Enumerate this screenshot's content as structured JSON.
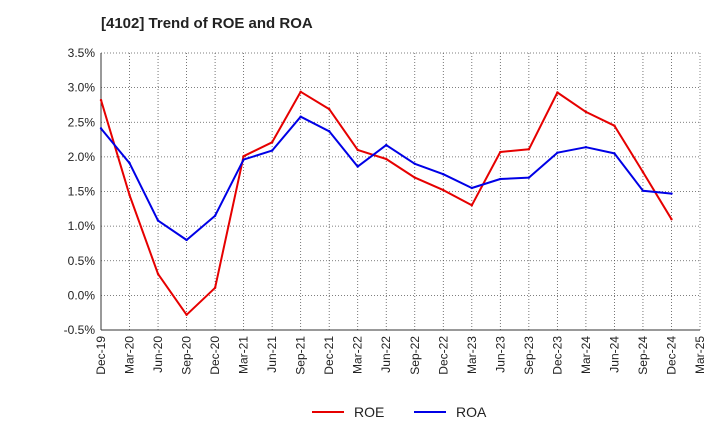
{
  "chart_data": {
    "type": "line",
    "title": "[4102]  Trend of ROE and ROA",
    "xlabel": "",
    "ylabel": "",
    "categories": [
      "Dec-19",
      "Mar-20",
      "Jun-20",
      "Sep-20",
      "Dec-20",
      "Mar-21",
      "Jun-21",
      "Sep-21",
      "Dec-21",
      "Mar-22",
      "Jun-22",
      "Sep-22",
      "Dec-22",
      "Mar-23",
      "Jun-23",
      "Sep-23",
      "Dec-23",
      "Mar-24",
      "Jun-24",
      "Sep-24",
      "Dec-24",
      "Mar-25"
    ],
    "ylim": [
      -0.5,
      3.5
    ],
    "yticks": [
      "-0.5%",
      "0.0%",
      "0.5%",
      "1.0%",
      "1.5%",
      "2.0%",
      "2.5%",
      "3.0%",
      "3.5%"
    ],
    "ytick_values": [
      -0.5,
      0,
      0.5,
      1.0,
      1.5,
      2.0,
      2.5,
      3.0,
      3.5
    ],
    "grid": true,
    "legend_position": "bottom",
    "series": [
      {
        "name": "ROE",
        "color": "#e60000",
        "values": [
          2.82,
          1.45,
          0.31,
          -0.28,
          0.11,
          2.01,
          2.21,
          2.94,
          2.69,
          2.1,
          1.97,
          1.7,
          1.52,
          1.3,
          2.07,
          2.11,
          2.93,
          2.65,
          2.45,
          1.78,
          1.1,
          null
        ]
      },
      {
        "name": "ROA",
        "color": "#0000e6",
        "values": [
          2.41,
          1.91,
          1.08,
          0.8,
          1.15,
          1.96,
          2.09,
          2.58,
          2.37,
          1.86,
          2.17,
          1.9,
          1.75,
          1.55,
          1.68,
          1.7,
          2.06,
          2.14,
          2.05,
          1.51,
          1.47,
          null
        ]
      }
    ]
  }
}
